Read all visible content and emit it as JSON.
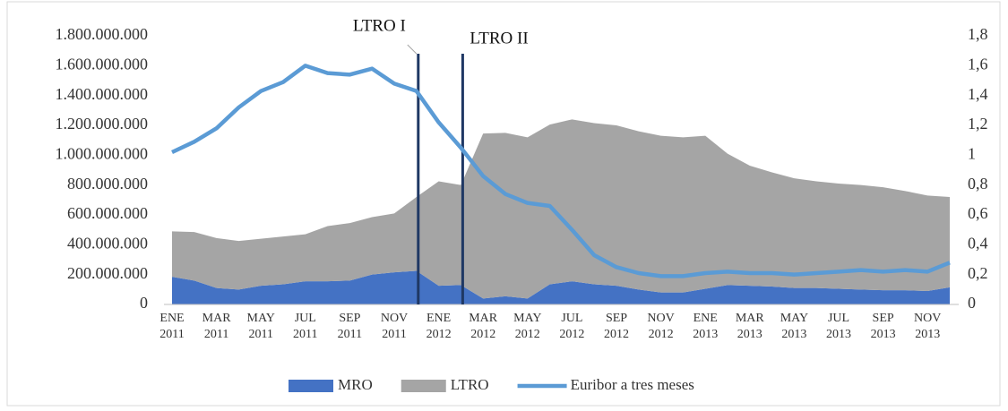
{
  "chart_data": {
    "type": "stacked_area_line",
    "categories": [
      "ENE 2011",
      null,
      "MAR 2011",
      null,
      "MAY 2011",
      null,
      "JUL 2011",
      null,
      "SEP 2011",
      null,
      "NOV 2011",
      null,
      "ENE 2012",
      null,
      "MAR 2012",
      null,
      "MAY 2012",
      null,
      "JUL 2012",
      null,
      "SEP 2012",
      null,
      "NOV 2012",
      null,
      "ENE 2013",
      null,
      "MAR 2013",
      null,
      "MAY 2013",
      null,
      "JUL 2013",
      null,
      "SEP 2013",
      null,
      "NOV 2013",
      null
    ],
    "series": [
      {
        "name": "MRO",
        "color": "#4472c4",
        "kind": "area",
        "values": [
          185000000,
          160000000,
          110000000,
          100000000,
          125000000,
          135000000,
          155000000,
          155000000,
          160000000,
          200000000,
          215000000,
          225000000,
          125000000,
          130000000,
          40000000,
          55000000,
          40000000,
          135000000,
          155000000,
          135000000,
          125000000,
          100000000,
          80000000,
          80000000,
          105000000,
          130000000,
          125000000,
          120000000,
          110000000,
          110000000,
          105000000,
          100000000,
          95000000,
          95000000,
          90000000,
          115000000
        ]
      },
      {
        "name": "LTRO",
        "color": "#a5a5a5",
        "kind": "area",
        "values": [
          305000000,
          325000000,
          335000000,
          325000000,
          315000000,
          320000000,
          315000000,
          370000000,
          385000000,
          385000000,
          395000000,
          495000000,
          700000000,
          670000000,
          1105000000,
          1095000000,
          1080000000,
          1070000000,
          1085000000,
          1080000000,
          1075000000,
          1060000000,
          1050000000,
          1040000000,
          1025000000,
          880000000,
          805000000,
          765000000,
          735000000,
          715000000,
          705000000,
          700000000,
          690000000,
          665000000,
          640000000,
          605000000
        ]
      },
      {
        "name": "Euribor a tres meses",
        "color": "#5b9bd5",
        "kind": "line",
        "axis": "y2",
        "values": [
          1.02,
          1.09,
          1.18,
          1.32,
          1.43,
          1.49,
          1.6,
          1.55,
          1.54,
          1.58,
          1.48,
          1.43,
          1.22,
          1.05,
          0.86,
          0.74,
          0.68,
          0.66,
          0.5,
          0.33,
          0.25,
          0.21,
          0.19,
          0.19,
          0.21,
          0.22,
          0.21,
          0.21,
          0.2,
          0.21,
          0.22,
          0.23,
          0.22,
          0.23,
          0.22,
          0.28
        ]
      }
    ],
    "ylim": [
      0,
      1800000000
    ],
    "yticks": [
      0,
      {
        "value": 200000000,
        "label": "200.000.000"
      },
      {
        "value": 400000000,
        "label": "400.000.000"
      },
      {
        "value": 600000000,
        "label": "600.000.000"
      },
      {
        "value": 800000000,
        "label": "800.000.000"
      },
      {
        "value": 1000000000,
        "label": "1.000.000.000"
      },
      {
        "value": 1200000000,
        "label": "1.200.000.000"
      },
      {
        "value": 1400000000,
        "label": "1.400.000.000"
      },
      {
        "value": 1600000000,
        "label": "1.600.000.000"
      },
      {
        "value": 1800000000,
        "label": "1.800.000.000"
      }
    ],
    "y2lim": [
      0,
      1.8
    ],
    "y2ticks": [
      0,
      {
        "value": 0.2,
        "label": "0,2"
      },
      {
        "value": 0.4,
        "label": "0,4"
      },
      {
        "value": 0.6,
        "label": "0,6"
      },
      {
        "value": 0.8,
        "label": "0,8"
      },
      1,
      {
        "value": 1.2,
        "label": "1,2"
      },
      {
        "value": 1.4,
        "label": "1,4"
      },
      {
        "value": 1.6,
        "label": "1,6"
      },
      {
        "value": 1.8,
        "label": "1,8"
      }
    ],
    "annotations": [
      {
        "text": "LTRO I",
        "x_index": 11
      },
      {
        "text": "LTRO II",
        "x_index": 13
      }
    ],
    "legend": "bottom"
  }
}
